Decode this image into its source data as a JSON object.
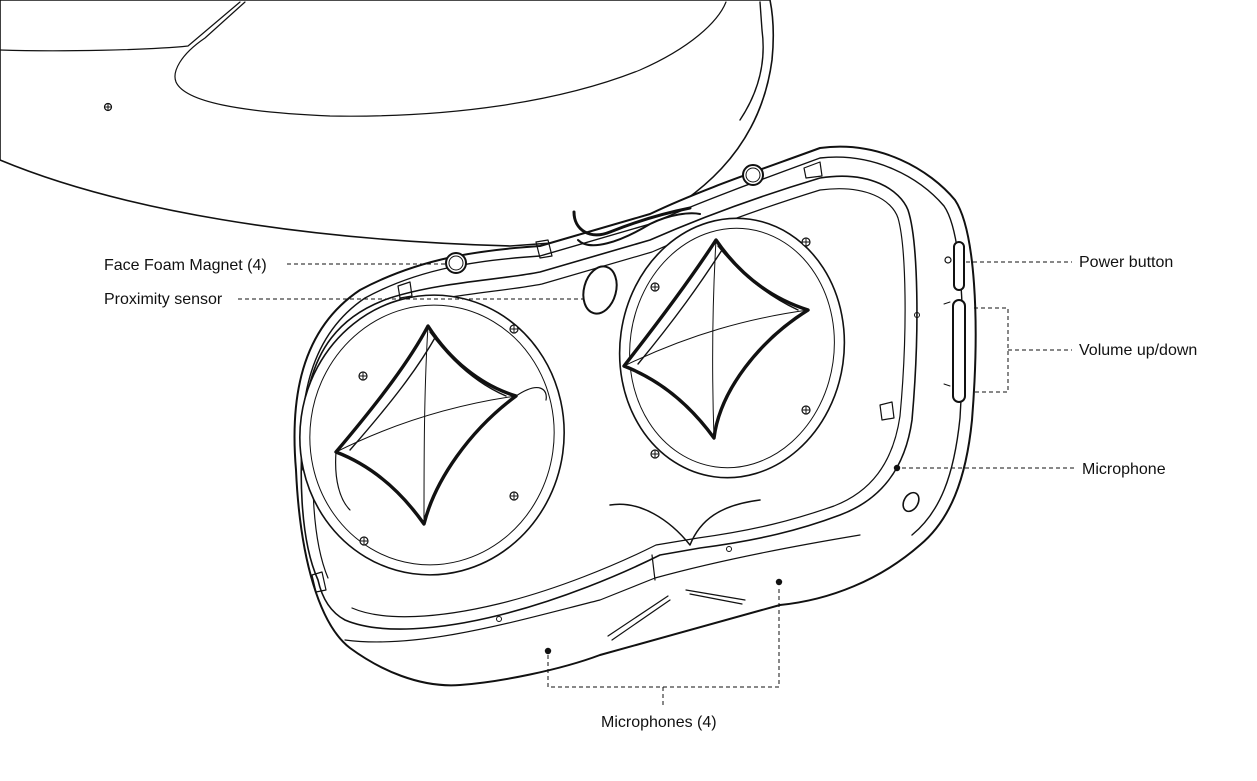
{
  "callouts": {
    "face_foam_magnet": "Face Foam Magnet (4)",
    "proximity_sensor": "Proximity sensor",
    "power_button": "Power button",
    "volume_up_down": "Volume up/down",
    "microphone": "Microphone",
    "microphones": "Microphones (4)"
  },
  "colors": {
    "line": "#111111",
    "background": "#ffffff"
  }
}
